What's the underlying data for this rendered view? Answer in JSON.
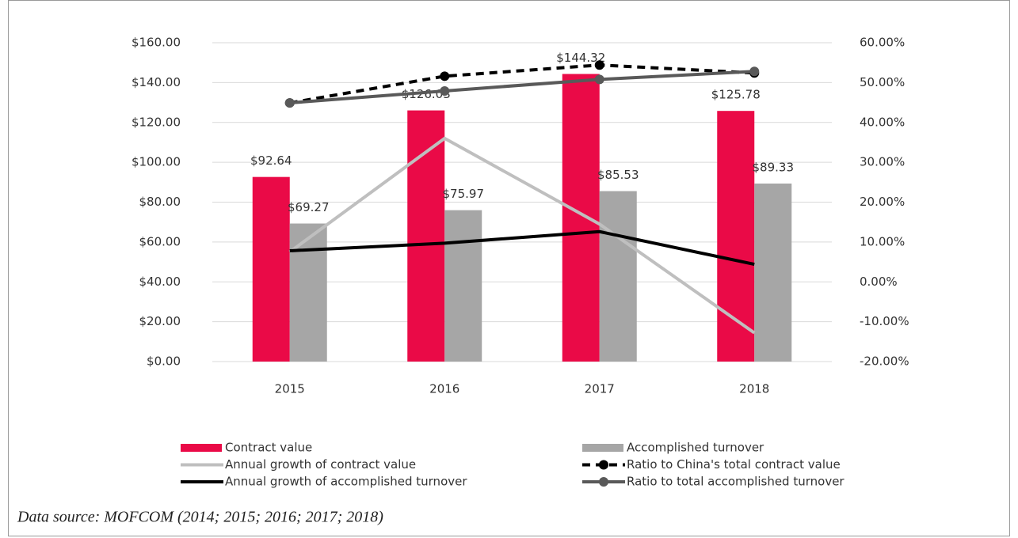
{
  "chart_data": {
    "type": "bar",
    "categories": [
      "2015",
      "2016",
      "2017",
      "2018"
    ],
    "ylim": [
      0,
      160
    ],
    "yticks": [
      {
        "value": 0,
        "label": "$0.00"
      },
      {
        "value": 20,
        "label": "$20.00"
      },
      {
        "value": 40,
        "label": "$40.00"
      },
      {
        "value": 60,
        "label": "$60.00"
      },
      {
        "value": 80,
        "label": "$80.00"
      },
      {
        "value": 100,
        "label": "$100.00"
      },
      {
        "value": 120,
        "label": "$120.00"
      },
      {
        "value": 140,
        "label": "$140.00"
      },
      {
        "value": 160,
        "label": "$160.00"
      }
    ],
    "y2lim": [
      -20,
      60
    ],
    "y2ticks": [
      {
        "value": -20,
        "label": "-20.00%"
      },
      {
        "value": -10,
        "label": "-10.00%"
      },
      {
        "value": 0,
        "label": "0.00%"
      },
      {
        "value": 10,
        "label": "10.00%"
      },
      {
        "value": 20,
        "label": "20.00%"
      },
      {
        "value": 30,
        "label": "30.00%"
      },
      {
        "value": 40,
        "label": "40.00%"
      },
      {
        "value": 50,
        "label": "50.00%"
      },
      {
        "value": 60,
        "label": "60.00%"
      }
    ],
    "grid": true,
    "series": [
      {
        "name": "Contract value",
        "type": "bar",
        "color": "#ea0a47",
        "values": [
          92.64,
          126.03,
          144.32,
          125.78
        ],
        "value_labels": [
          "$92.64",
          "$126.03",
          "$144.32",
          "$125.78"
        ]
      },
      {
        "name": "Accomplished turnover",
        "type": "bar",
        "color": "#a6a6a6",
        "values": [
          69.27,
          75.97,
          85.53,
          89.33
        ],
        "value_labels": [
          "$69.27",
          "$75.97",
          "$85.53",
          "$89.33"
        ]
      },
      {
        "name": "Annual growth of contract value",
        "type": "line",
        "axis": "y2",
        "color": "#bfbfbf",
        "values": [
          7.5,
          36.0,
          14.5,
          -12.8
        ]
      },
      {
        "name": "Ratio to China's total contract value",
        "type": "line",
        "axis": "y2",
        "color": "#000000",
        "dashed": true,
        "marker": true,
        "values": [
          44.9,
          51.6,
          54.4,
          52.4
        ]
      },
      {
        "name": "Annual growth of accomplished turnover",
        "type": "line",
        "axis": "y2",
        "color": "#000000",
        "values": [
          7.8,
          9.7,
          12.6,
          4.4
        ]
      },
      {
        "name": "Ratio to total accomplished turnover",
        "type": "line",
        "axis": "y2",
        "color": "#595959",
        "marker": true,
        "values": [
          44.9,
          47.9,
          50.8,
          52.8
        ]
      }
    ],
    "source": "Data source: MOFCOM (2014; 2015; 2016; 2017; 2018)"
  }
}
